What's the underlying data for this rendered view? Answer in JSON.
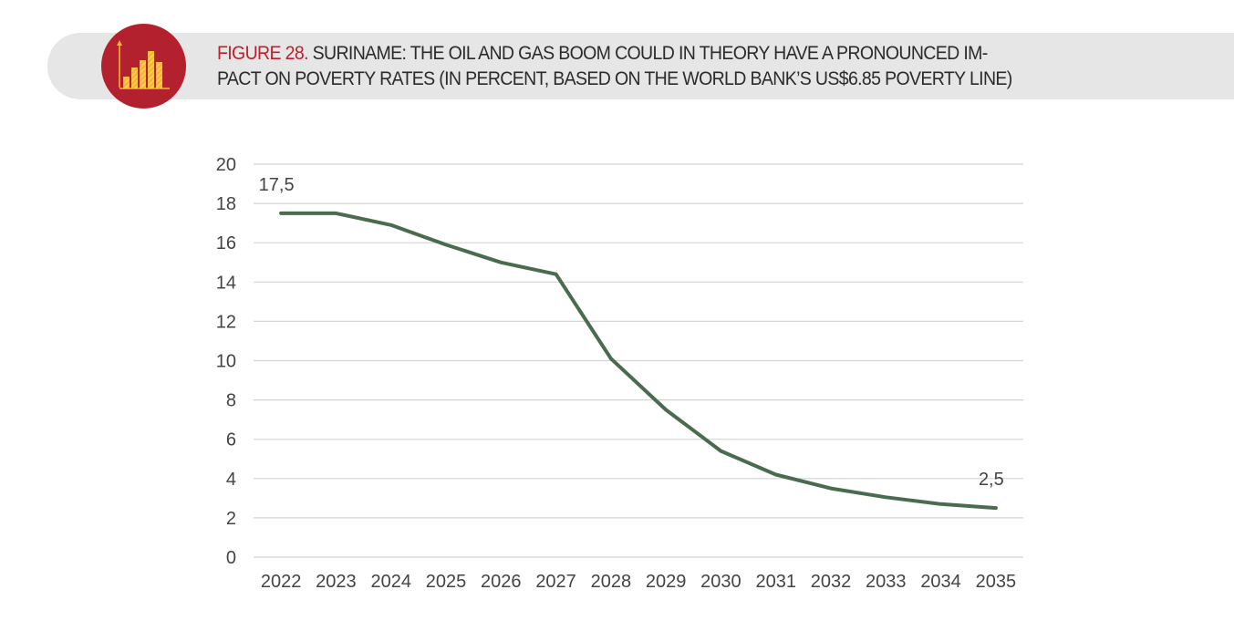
{
  "figure": {
    "label": "FIGURE 28.",
    "title_line1": "SURINAME: THE OIL AND GAS BOOM COULD IN THEORY HAVE A PRONOUNCED IM-",
    "title_line2": "PACT ON POVERTY RATES (IN PERCENT, BASED ON THE WORLD BANK’S US$6.85 POVERTY LINE)",
    "icon": "bar-chart-icon",
    "accent_color": "#c0202e",
    "badge_color": "#b3202e"
  },
  "chart_data": {
    "type": "line",
    "x": [
      "2022",
      "2023",
      "2024",
      "2025",
      "2026",
      "2027",
      "2028",
      "2029",
      "2030",
      "2031",
      "2032",
      "2033",
      "2034",
      "2035"
    ],
    "series": [
      {
        "values": [
          17.5,
          17.5,
          16.9,
          15.9,
          15.0,
          14.4,
          10.1,
          7.5,
          5.4,
          4.2,
          3.5,
          3.05,
          2.7,
          2.5
        ],
        "color": "#4a6b4e"
      }
    ],
    "data_labels": [
      {
        "x": "2022",
        "text": "17,5"
      },
      {
        "x": "2035",
        "text": "2,5"
      }
    ],
    "yticks": [
      "0",
      "2",
      "4",
      "6",
      "8",
      "10",
      "12",
      "14",
      "16",
      "18",
      "20"
    ],
    "ylim": [
      0,
      20
    ],
    "grid": true,
    "title": "",
    "xlabel": "",
    "ylabel": ""
  }
}
